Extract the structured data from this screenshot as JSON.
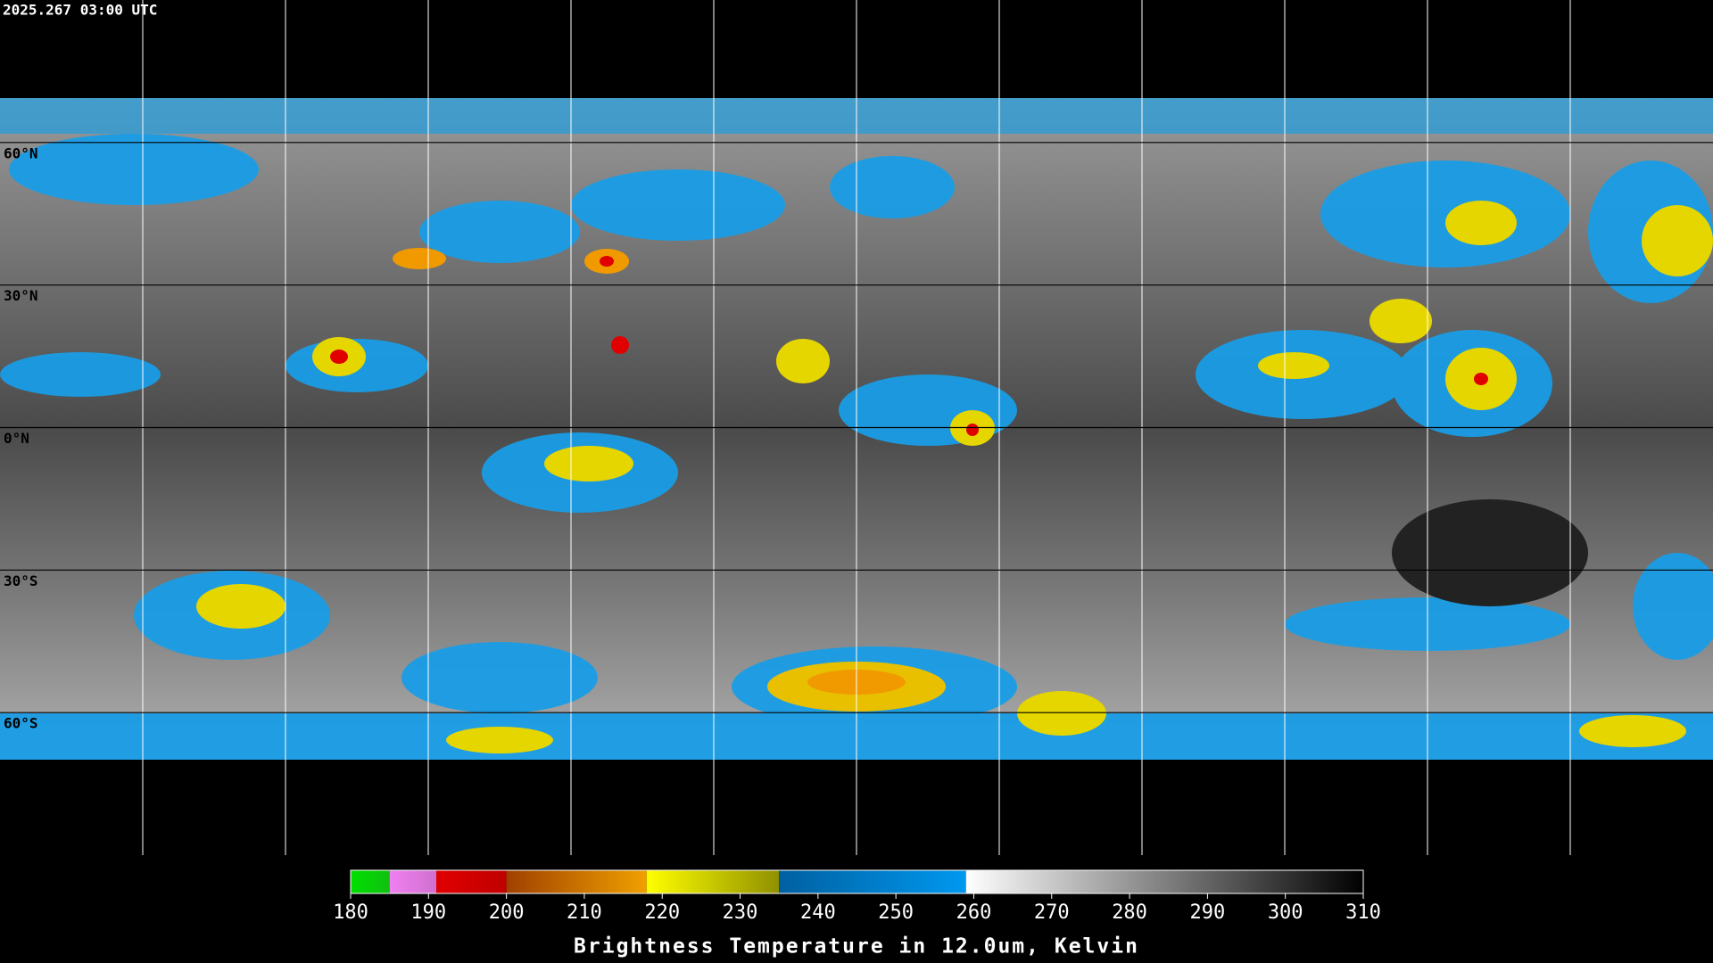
{
  "header": {
    "title": "2025.267 03:00 UTC"
  },
  "map": {
    "lat_range": [
      90,
      -90
    ],
    "lat_lines": [
      {
        "value": 60,
        "label": "60°N"
      },
      {
        "value": 30,
        "label": "30°N"
      },
      {
        "value": 0,
        "label": "0°N"
      },
      {
        "value": -30,
        "label": "30°S"
      },
      {
        "value": -60,
        "label": "60°S"
      }
    ]
  },
  "colorbar": {
    "label": "Brightness Temperature in 12.0um, Kelvin",
    "range": [
      180,
      310
    ],
    "ticks": [
      180,
      190,
      200,
      210,
      220,
      230,
      240,
      250,
      260,
      270,
      280,
      290,
      300,
      310
    ],
    "segments": [
      {
        "from": 180,
        "to": 185,
        "colors": [
          "#00e000",
          "#10c010"
        ]
      },
      {
        "from": 185,
        "to": 191,
        "colors": [
          "#f080f0",
          "#d070d0"
        ]
      },
      {
        "from": 191,
        "to": 200,
        "colors": [
          "#e00000",
          "#c00000"
        ]
      },
      {
        "from": 200,
        "to": 218,
        "colors": [
          "#a04000",
          "#f0a000"
        ]
      },
      {
        "from": 218,
        "to": 235,
        "colors": [
          "#ffff00",
          "#909000"
        ]
      },
      {
        "from": 235,
        "to": 259,
        "colors": [
          "#0060a0",
          "#0098f0"
        ]
      },
      {
        "from": 259,
        "to": 310,
        "colors": [
          "#ffffff",
          "#000000"
        ]
      }
    ]
  }
}
